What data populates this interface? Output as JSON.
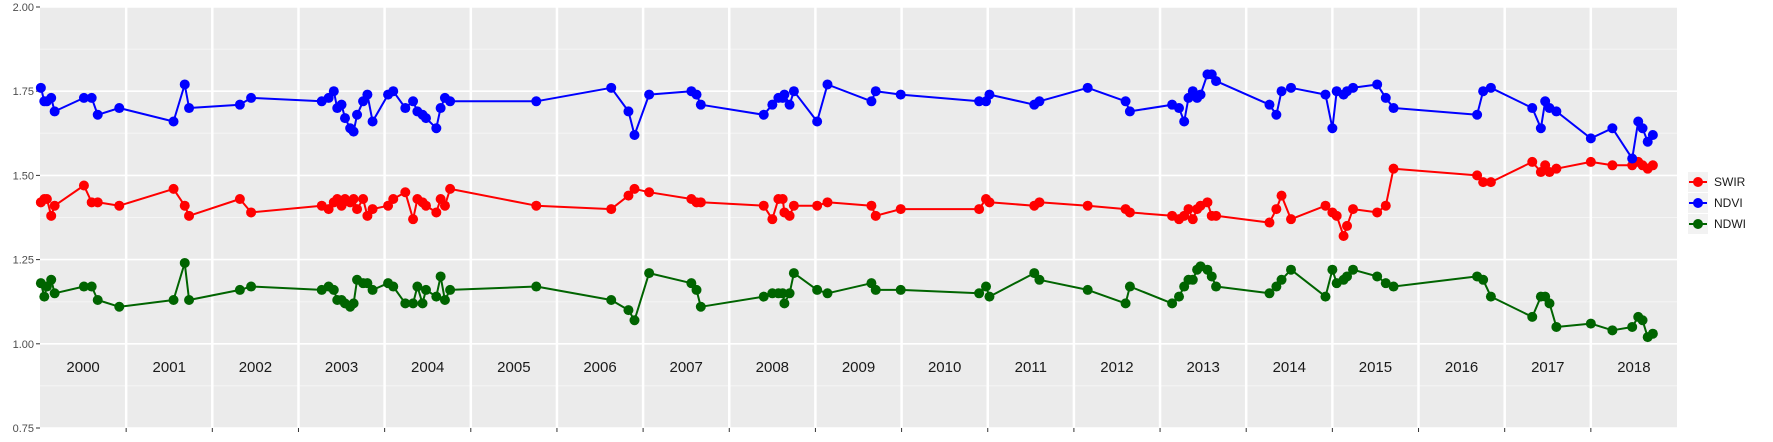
{
  "chart_data": {
    "type": "line",
    "title": "",
    "xlabel": "",
    "ylabel": "",
    "xlim": [
      2000.0,
      2019.0
    ],
    "ylim": [
      0.75,
      2.0
    ],
    "y_ticks": [
      "0.75",
      "1.00",
      "1.25",
      "1.50",
      "1.75",
      "2.00"
    ],
    "y_tick_values": [
      0.75,
      1.0,
      1.25,
      1.5,
      1.75,
      2.0
    ],
    "years": [
      "2000",
      "2001",
      "2002",
      "2003",
      "2004",
      "2005",
      "2006",
      "2007",
      "2008",
      "2009",
      "2010",
      "2011",
      "2012",
      "2013",
      "2014",
      "2015",
      "2016",
      "2017",
      "2018"
    ],
    "grid": true,
    "legend_position": "right",
    "x": [
      2000.01,
      2000.05,
      2000.08,
      2000.13,
      2000.17,
      2000.51,
      2000.6,
      2000.67,
      2000.92,
      2001.55,
      2001.68,
      2001.73,
      2002.32,
      2002.45,
      2003.27,
      2003.35,
      2003.41,
      2003.45,
      2003.5,
      2003.54,
      2003.6,
      2003.64,
      2003.68,
      2003.75,
      2003.8,
      2003.86,
      2004.04,
      2004.1,
      2004.24,
      2004.33,
      2004.38,
      2004.44,
      2004.48,
      2004.6,
      2004.65,
      2004.7,
      2004.76,
      2005.76,
      2006.63,
      2006.83,
      2006.9,
      2007.07,
      2007.56,
      2007.62,
      2007.67,
      2008.4,
      2008.5,
      2008.57,
      2008.62,
      2008.64,
      2008.7,
      2008.75,
      2009.02,
      2009.14,
      2009.65,
      2009.7,
      2009.99,
      2010.9,
      2010.98,
      2011.02,
      2011.54,
      2011.6,
      2012.16,
      2012.6,
      2012.65,
      2013.14,
      2013.22,
      2013.28,
      2013.33,
      2013.38,
      2013.43,
      2013.47,
      2013.55,
      2013.6,
      2013.65,
      2014.27,
      2014.35,
      2014.41,
      2014.52,
      2014.92,
      2015.0,
      2015.05,
      2015.13,
      2015.17,
      2015.24,
      2015.52,
      2015.62,
      2015.71,
      2016.68,
      2016.75,
      2016.84,
      2017.32,
      2017.42,
      2017.47,
      2017.52,
      2017.6,
      2018.0,
      2018.25,
      2018.48,
      2018.55,
      2018.6,
      2018.66,
      2018.72
    ],
    "series": [
      {
        "name": "SWIR",
        "color": "#ff0000",
        "values": [
          1.42,
          1.43,
          1.43,
          1.38,
          1.41,
          1.47,
          1.42,
          1.42,
          1.41,
          1.46,
          1.41,
          1.38,
          1.43,
          1.39,
          1.41,
          1.4,
          1.42,
          1.43,
          1.41,
          1.43,
          1.42,
          1.43,
          1.4,
          1.43,
          1.38,
          1.4,
          1.41,
          1.43,
          1.45,
          1.37,
          1.43,
          1.42,
          1.41,
          1.39,
          1.43,
          1.41,
          1.46,
          1.41,
          1.4,
          1.44,
          1.46,
          1.45,
          1.43,
          1.42,
          1.42,
          1.41,
          1.37,
          1.43,
          1.43,
          1.39,
          1.38,
          1.41,
          1.41,
          1.42,
          1.41,
          1.38,
          1.4,
          1.4,
          1.43,
          1.42,
          1.41,
          1.42,
          1.41,
          1.4,
          1.39,
          1.38,
          1.37,
          1.38,
          1.4,
          1.37,
          1.4,
          1.41,
          1.42,
          1.38,
          1.38,
          1.36,
          1.4,
          1.44,
          1.37,
          1.41,
          1.39,
          1.38,
          1.32,
          1.35,
          1.4,
          1.39,
          1.41,
          1.52,
          1.5,
          1.48,
          1.48,
          1.54,
          1.51,
          1.53,
          1.51,
          1.52,
          1.54,
          1.53,
          1.53,
          1.54,
          1.53,
          1.52,
          1.53
        ]
      },
      {
        "name": "NDVI",
        "color": "#0000ff",
        "values": [
          1.76,
          1.72,
          1.72,
          1.73,
          1.69,
          1.73,
          1.73,
          1.68,
          1.7,
          1.66,
          1.77,
          1.7,
          1.71,
          1.73,
          1.72,
          1.73,
          1.75,
          1.7,
          1.71,
          1.67,
          1.64,
          1.63,
          1.68,
          1.72,
          1.74,
          1.66,
          1.74,
          1.75,
          1.7,
          1.72,
          1.69,
          1.68,
          1.67,
          1.64,
          1.7,
          1.73,
          1.72,
          1.72,
          1.76,
          1.69,
          1.62,
          1.74,
          1.75,
          1.74,
          1.71,
          1.68,
          1.71,
          1.73,
          1.73,
          1.74,
          1.71,
          1.75,
          1.66,
          1.77,
          1.72,
          1.75,
          1.74,
          1.72,
          1.72,
          1.74,
          1.71,
          1.72,
          1.76,
          1.72,
          1.69,
          1.71,
          1.7,
          1.66,
          1.73,
          1.75,
          1.73,
          1.74,
          1.8,
          1.8,
          1.78,
          1.71,
          1.68,
          1.75,
          1.76,
          1.74,
          1.64,
          1.75,
          1.74,
          1.75,
          1.76,
          1.77,
          1.73,
          1.7,
          1.68,
          1.75,
          1.76,
          1.7,
          1.64,
          1.72,
          1.7,
          1.69,
          1.61,
          1.64,
          1.55,
          1.66,
          1.64,
          1.6,
          1.62
        ]
      },
      {
        "name": "NDWI",
        "color": "#006400",
        "values": [
          1.18,
          1.14,
          1.17,
          1.19,
          1.15,
          1.17,
          1.17,
          1.13,
          1.11,
          1.13,
          1.24,
          1.13,
          1.16,
          1.17,
          1.16,
          1.17,
          1.16,
          1.13,
          1.13,
          1.12,
          1.11,
          1.12,
          1.19,
          1.18,
          1.18,
          1.16,
          1.18,
          1.17,
          1.12,
          1.12,
          1.17,
          1.12,
          1.16,
          1.14,
          1.2,
          1.13,
          1.16,
          1.17,
          1.13,
          1.1,
          1.07,
          1.21,
          1.18,
          1.16,
          1.11,
          1.14,
          1.15,
          1.15,
          1.15,
          1.12,
          1.15,
          1.21,
          1.16,
          1.15,
          1.18,
          1.16,
          1.16,
          1.15,
          1.17,
          1.14,
          1.21,
          1.19,
          1.16,
          1.12,
          1.17,
          1.12,
          1.14,
          1.17,
          1.19,
          1.19,
          1.22,
          1.23,
          1.22,
          1.2,
          1.17,
          1.15,
          1.17,
          1.19,
          1.22,
          1.14,
          1.22,
          1.18,
          1.19,
          1.2,
          1.22,
          1.2,
          1.18,
          1.17,
          1.2,
          1.19,
          1.14,
          1.08,
          1.14,
          1.14,
          1.12,
          1.05,
          1.06,
          1.04,
          1.05,
          1.08,
          1.07,
          1.02,
          1.03
        ]
      }
    ]
  }
}
